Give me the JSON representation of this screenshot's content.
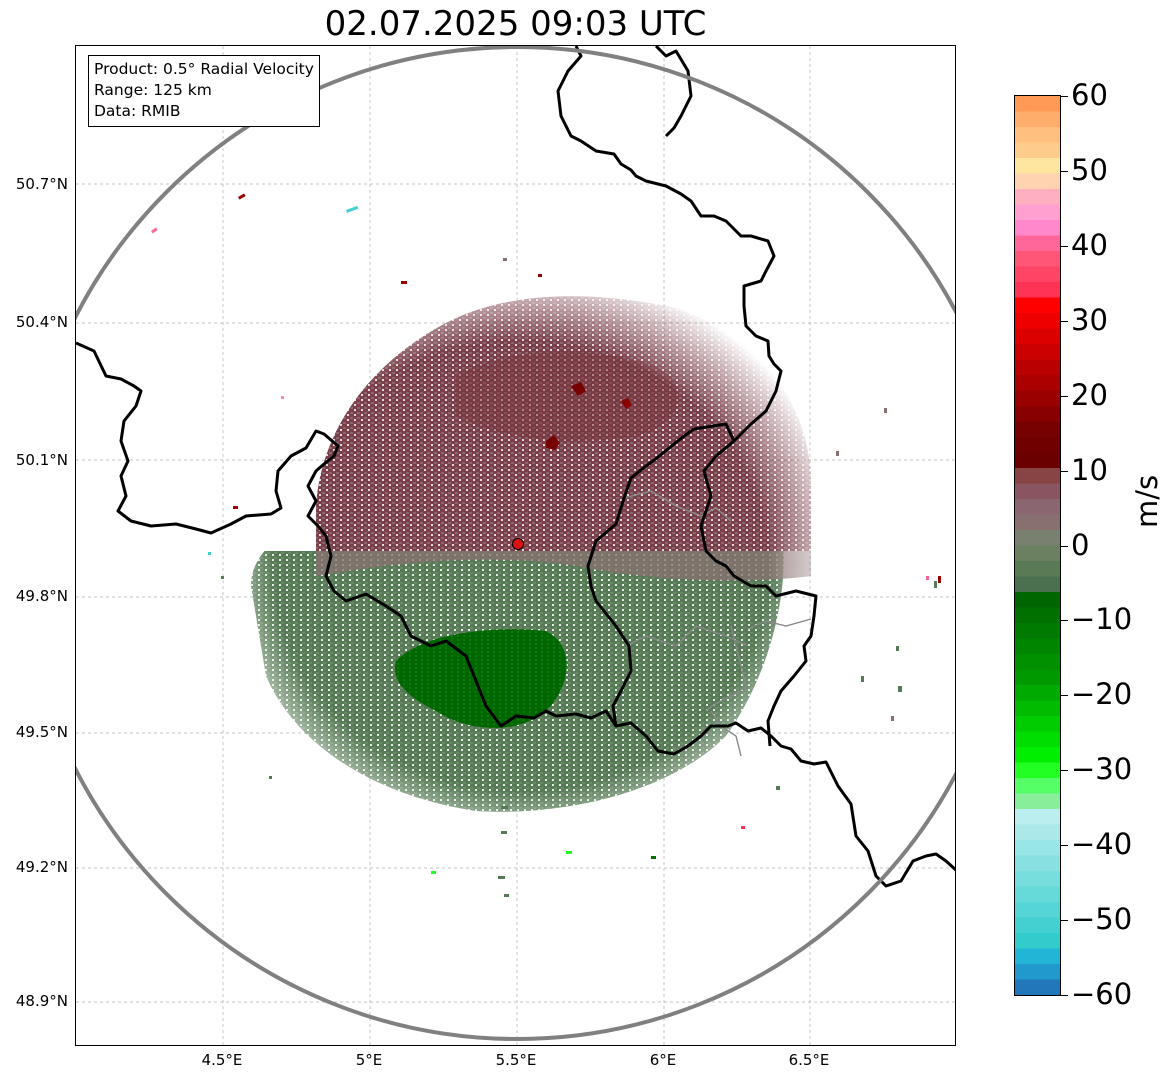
{
  "title": "02.07.2025 09:03 UTC",
  "info_box": {
    "product": "Product: 0.5° Radial Velocity",
    "range": "Range: 125 km",
    "data": "Data: RMIB"
  },
  "latitude_labels": [
    "50.7°N",
    "50.4°N",
    "50.1°N",
    "49.8°N",
    "49.5°N",
    "49.2°N",
    "48.9°N"
  ],
  "longitude_labels": [
    "4.5°E",
    "5°E",
    "5.5°E",
    "6°E",
    "6.5°E"
  ],
  "colorbar": {
    "unit": "m/s",
    "tick_labels": [
      "60",
      "50",
      "40",
      "30",
      "20",
      "10",
      "0",
      "−10",
      "−20",
      "−30",
      "−40",
      "−50",
      "−60"
    ],
    "range": [
      -60,
      60
    ],
    "colors_top_to_bottom": [
      "#ff9955",
      "#ffad6a",
      "#ffbf7f",
      "#ffcc8c",
      "#ffe6a0",
      "#ffd3b0",
      "#ffb0c0",
      "#ffa0d0",
      "#ff88cc",
      "#ff6699",
      "#ff5577",
      "#ff4466",
      "#ff3355",
      "#ff0000",
      "#ee0000",
      "#dd0000",
      "#cc0000",
      "#bb0000",
      "#aa0000",
      "#990000",
      "#880000",
      "#770000",
      "#700000",
      "#6a0000",
      "#884444",
      "#8a5560",
      "#8a6670",
      "#887070",
      "#7a8070",
      "#6a8060",
      "#5a7a55",
      "#4a7050",
      "#006600",
      "#007000",
      "#007a00",
      "#008500",
      "#009000",
      "#009a00",
      "#00aa00",
      "#00bb00",
      "#00cc00",
      "#00dd00",
      "#00ee00",
      "#22ff22",
      "#55ff66",
      "#88ee99",
      "#bbeeee",
      "#aae8ea",
      "#99e6e6",
      "#88e0e0",
      "#77dddd",
      "#66d9d9",
      "#55d5d5",
      "#44d0d0",
      "#33cccc",
      "#22b5d5",
      "#2299cc",
      "#2277bb"
    ]
  },
  "radar": {
    "site_lon": 5.505,
    "site_lat": 49.914,
    "range_km": 125,
    "site_marker_color": "#dd1111"
  },
  "map_extent": {
    "lon": [
      4.0,
      7.0
    ],
    "lat": [
      48.8,
      50.995
    ]
  },
  "colors": {
    "receding": "#7a3d47",
    "receding_light": "#8a6670",
    "approaching": "#557a55",
    "approaching_strong": "#006600",
    "border": "#000000",
    "minor_border": "#888888",
    "range_ring": "#808080",
    "grid": "#b0b0b0"
  }
}
